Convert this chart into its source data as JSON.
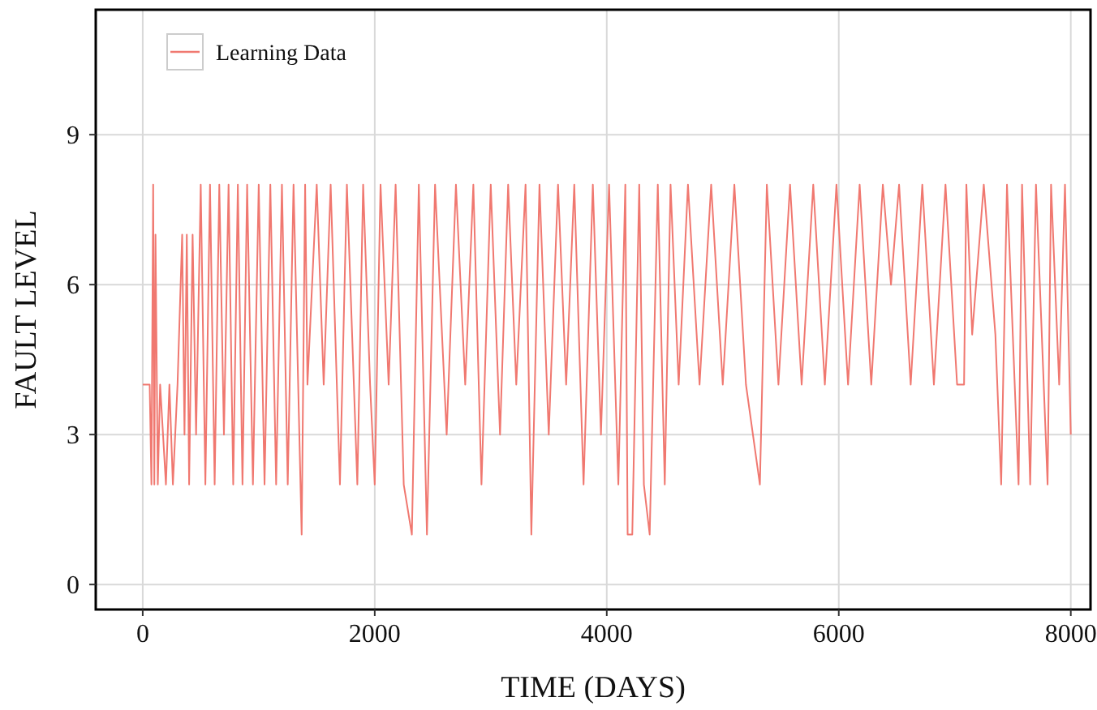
{
  "chart_data": {
    "type": "line",
    "xlabel": "TIME (DAYS)",
    "ylabel": "FAULT LEVEL",
    "x": [
      0,
      60,
      75,
      90,
      100,
      110,
      130,
      150,
      200,
      230,
      260,
      300,
      340,
      360,
      380,
      400,
      430,
      460,
      500,
      540,
      580,
      620,
      660,
      700,
      740,
      780,
      820,
      860,
      900,
      950,
      1000,
      1050,
      1100,
      1150,
      1200,
      1250,
      1300,
      1370,
      1400,
      1420,
      1500,
      1560,
      1620,
      1700,
      1760,
      1850,
      1900,
      1960,
      2000,
      2050,
      2120,
      2180,
      2250,
      2320,
      2380,
      2450,
      2520,
      2620,
      2700,
      2780,
      2850,
      2920,
      3000,
      3080,
      3150,
      3220,
      3300,
      3350,
      3420,
      3500,
      3580,
      3650,
      3720,
      3800,
      3880,
      3950,
      4020,
      4100,
      4160,
      4180,
      4220,
      4280,
      4320,
      4370,
      4440,
      4500,
      4550,
      4620,
      4700,
      4800,
      4900,
      5000,
      5100,
      5200,
      5320,
      5380,
      5480,
      5580,
      5680,
      5780,
      5880,
      5980,
      6080,
      6180,
      6280,
      6380,
      6450,
      6520,
      6620,
      6720,
      6820,
      6920,
      7020,
      7080,
      7100,
      7150,
      7250,
      7350,
      7400,
      7450,
      7500,
      7550,
      7580,
      7650,
      7700,
      7800,
      7830,
      7900,
      7950,
      8000
    ],
    "series": [
      {
        "name": "Learning Data",
        "color": "#f07870",
        "values": [
          4,
          4,
          2,
          8,
          2,
          7,
          2,
          4,
          2,
          4,
          2,
          4,
          7,
          3,
          7,
          2,
          7,
          3,
          8,
          2,
          8,
          2,
          8,
          3,
          8,
          2,
          8,
          2,
          8,
          2,
          8,
          2,
          8,
          2,
          8,
          2,
          8,
          1,
          8,
          4,
          8,
          4,
          8,
          2,
          8,
          2,
          8,
          4,
          2,
          8,
          4,
          8,
          2,
          1,
          8,
          1,
          8,
          3,
          8,
          4,
          8,
          2,
          8,
          3,
          8,
          4,
          8,
          1,
          8,
          3,
          8,
          4,
          8,
          2,
          8,
          3,
          8,
          2,
          8,
          1,
          1,
          8,
          2,
          1,
          8,
          2,
          8,
          4,
          8,
          4,
          8,
          4,
          8,
          4,
          2,
          8,
          4,
          8,
          4,
          8,
          4,
          8,
          4,
          8,
          4,
          8,
          6,
          8,
          4,
          8,
          4,
          8,
          4,
          4,
          8,
          5,
          8,
          5,
          2,
          8,
          5,
          2,
          8,
          2,
          8,
          2,
          8,
          4,
          8,
          3
        ]
      }
    ],
    "xlim": [
      -405,
      8170
    ],
    "ylim": [
      -0.5,
      11.5
    ],
    "xticks": [
      0,
      2000,
      4000,
      6000,
      8000
    ],
    "yticks": [
      0,
      3,
      6,
      9
    ],
    "grid": true,
    "legend": "top left"
  }
}
